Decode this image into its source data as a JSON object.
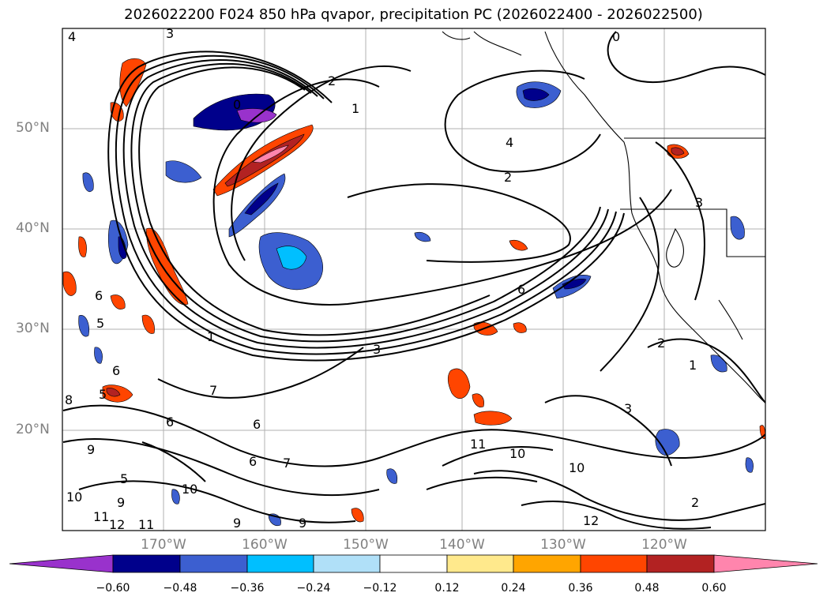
{
  "title": "2026022200 F024 850 hPa qvapor, precipitation PC (2026022400 - 2026022500)",
  "lat_labels": [
    "50°N",
    "40°N",
    "30°N",
    "20°N"
  ],
  "lon_labels": [
    "170°W",
    "160°W",
    "150°W",
    "140°W",
    "130°W",
    "120°W"
  ],
  "colorbar": {
    "ticks": [
      "−0.60",
      "−0.48",
      "−0.36",
      "−0.24",
      "−0.12",
      "0.12",
      "0.24",
      "0.36",
      "0.48",
      "0.60"
    ],
    "colors": [
      "#9932cc",
      "#00008b",
      "#3c5fd0",
      "#00bfff",
      "#b0e0f8",
      "#ffffff",
      "#ffe98c",
      "#ffa500",
      "#ff4500",
      "#b22222",
      "#ff85ad"
    ]
  },
  "contour_labels": [
    "4",
    "3",
    "0",
    "2",
    "1",
    "0",
    "4",
    "2",
    "6",
    "6",
    "5",
    "6",
    "5",
    "7",
    "8",
    "9",
    "10",
    "11",
    "12",
    "11",
    "10",
    "9",
    "7",
    "6",
    "6",
    "5",
    "3",
    "11",
    "10",
    "10",
    "12",
    "9",
    "3",
    "2",
    "1",
    "6",
    "3",
    "2",
    "1",
    "9"
  ]
}
